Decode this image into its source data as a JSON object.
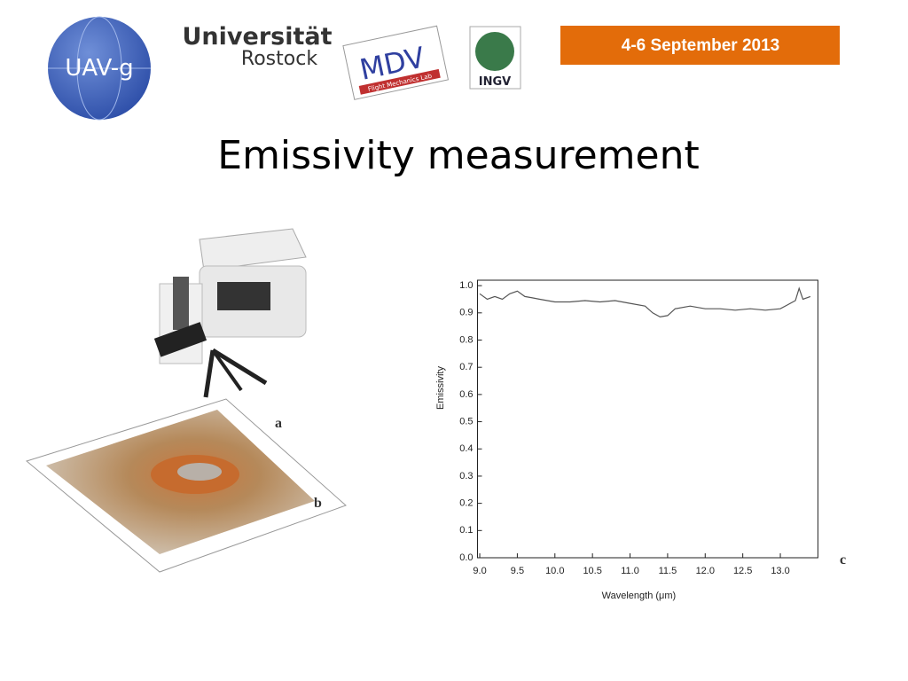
{
  "header": {
    "date": "4-6 September 2013",
    "logos": {
      "uav": "UAV-g",
      "rostock_1": "Universität",
      "rostock_2": "Rostock",
      "mdv": "MDV",
      "mdv_sub": "Flight Mechanics Lab",
      "ingv": "INGV"
    }
  },
  "title": "Emissivity measurement",
  "figure_labels": [
    "a",
    "b",
    "c"
  ],
  "chart_data": {
    "type": "line",
    "x_label": "Wavelength (μm)",
    "y_label": "Emissivity",
    "color": "#555555",
    "x": [
      9.0,
      9.1,
      9.2,
      9.3,
      9.4,
      9.5,
      9.6,
      9.7,
      9.8,
      9.9,
      10.0,
      10.2,
      10.4,
      10.6,
      10.8,
      11.0,
      11.2,
      11.3,
      11.4,
      11.5,
      11.6,
      11.8,
      12.0,
      12.2,
      12.4,
      12.6,
      12.8,
      13.0,
      13.1,
      13.2,
      13.25,
      13.3,
      13.4
    ],
    "values": [
      0.97,
      0.95,
      0.96,
      0.95,
      0.97,
      0.98,
      0.96,
      0.955,
      0.95,
      0.945,
      0.94,
      0.94,
      0.945,
      0.94,
      0.945,
      0.935,
      0.925,
      0.9,
      0.885,
      0.89,
      0.915,
      0.925,
      0.915,
      0.915,
      0.91,
      0.915,
      0.91,
      0.915,
      0.93,
      0.945,
      0.99,
      0.95,
      0.96
    ],
    "xlim": [
      8.97,
      13.5
    ],
    "ylim": [
      0,
      1.02
    ],
    "xticks": [
      {
        "value": 9,
        "label": "9.0"
      },
      9.5,
      {
        "value": 10,
        "label": "10.0"
      },
      10.5,
      {
        "value": 11,
        "label": "11.0"
      },
      11.5,
      {
        "value": 12,
        "label": "12.0"
      },
      12.5,
      {
        "value": 13,
        "label": "13.0"
      }
    ],
    "yticks": [
      {
        "value": 0,
        "label": "0.0"
      },
      0.1,
      0.2,
      0.3,
      0.4,
      0.5,
      0.6,
      0.7,
      0.8,
      0.9,
      {
        "value": 1,
        "label": "1.0"
      }
    ]
  }
}
